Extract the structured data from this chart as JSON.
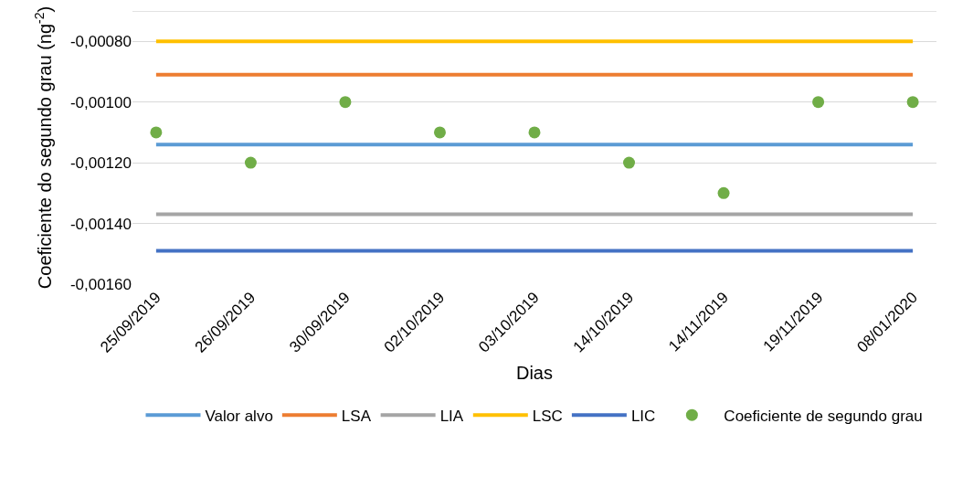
{
  "chart_data": {
    "type": "line",
    "xlabel": "Dias",
    "ylabel": "Coeficiente do segundo grau (ng$^{-2}$)",
    "categories": [
      "25/09/2019",
      "26/09/2019",
      "30/09/2019",
      "02/10/2019",
      "03/10/2019",
      "14/10/2019",
      "14/11/2019",
      "19/11/2019",
      "08/01/2020"
    ],
    "series": [
      {
        "name": "Valor alvo",
        "type": "line",
        "color": "#5b9bd5",
        "marker": "none",
        "values": [
          -0.00114,
          -0.00114,
          -0.00114,
          -0.00114,
          -0.00114,
          -0.00114,
          -0.00114,
          -0.00114,
          -0.00114
        ]
      },
      {
        "name": "LSA",
        "type": "line",
        "color": "#ed7d31",
        "marker": "none",
        "values": [
          -0.00091,
          -0.00091,
          -0.00091,
          -0.00091,
          -0.00091,
          -0.00091,
          -0.00091,
          -0.00091,
          -0.00091
        ]
      },
      {
        "name": "LIA",
        "type": "line",
        "color": "#a5a5a5",
        "marker": "none",
        "values": [
          -0.00137,
          -0.00137,
          -0.00137,
          -0.00137,
          -0.00137,
          -0.00137,
          -0.00137,
          -0.00137,
          -0.00137
        ]
      },
      {
        "name": "LSC",
        "type": "line",
        "color": "#ffc000",
        "marker": "none",
        "values": [
          -0.0008,
          -0.0008,
          -0.0008,
          -0.0008,
          -0.0008,
          -0.0008,
          -0.0008,
          -0.0008,
          -0.0008
        ]
      },
      {
        "name": "LIC",
        "type": "line",
        "color": "#4472c4",
        "marker": "none",
        "values": [
          -0.00149,
          -0.00149,
          -0.00149,
          -0.00149,
          -0.00149,
          -0.00149,
          -0.00149,
          -0.00149,
          -0.00149
        ]
      },
      {
        "name": "Coeficiente de segundo grau",
        "type": "scatter",
        "color": "#70ad47",
        "marker": "circle",
        "values": [
          -0.0011,
          -0.0012,
          -0.001,
          -0.0011,
          -0.0011,
          -0.0012,
          -0.0013,
          -0.001,
          -0.001
        ]
      }
    ],
    "ylim": [
      -0.0016,
      -0.0007
    ],
    "yticks": [
      {
        "value": -0.0016,
        "label": "-0,00160"
      },
      {
        "value": -0.0014,
        "label": "-0,00140"
      },
      {
        "value": -0.0012,
        "label": "-0,00120"
      },
      {
        "value": -0.001,
        "label": "-0,00100"
      },
      {
        "value": -0.0008,
        "label": "-0,00080"
      },
      {
        "value": -0.0007,
        "label": null
      }
    ],
    "grid": "y",
    "legend": "bottom"
  }
}
